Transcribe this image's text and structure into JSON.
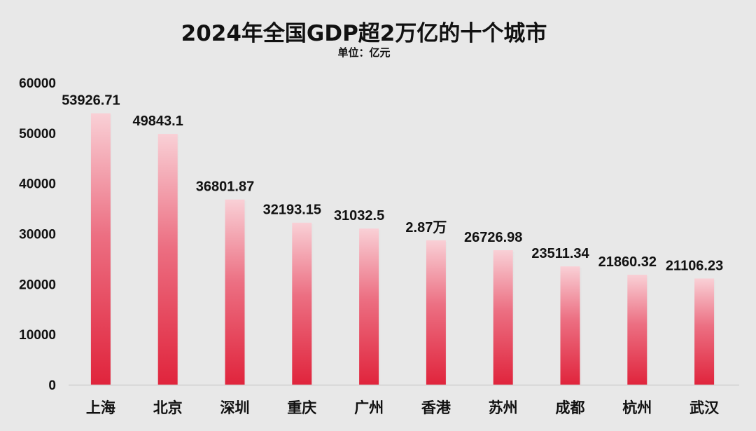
{
  "title": "2024年全国GDP超2万亿的十个城市",
  "subtitle": "单位：亿元",
  "colors": {
    "background": "#e8e8e8",
    "bar_top": "#f9d0d6",
    "bar_bottom": "#e0243c",
    "axis": "#d0d0d0"
  },
  "chart_data": {
    "type": "bar",
    "title": "2024年全国GDP超2万亿的十个城市",
    "subtitle": "单位：亿元",
    "categories": [
      "上海",
      "北京",
      "深圳",
      "重庆",
      "广州",
      "香港",
      "苏州",
      "成都",
      "杭州",
      "武汉"
    ],
    "values": [
      53926.71,
      49843.1,
      36801.87,
      32193.15,
      31032.5,
      28700,
      26726.98,
      23511.34,
      21860.32,
      21106.23
    ],
    "value_labels": [
      "53926.71",
      "49843.1",
      "36801.87",
      "32193.15",
      "31032.5",
      "2.87万",
      "26726.98",
      "23511.34",
      "21860.32",
      "21106.23"
    ],
    "yticks": [
      "0",
      "10000",
      "20000",
      "30000",
      "40000",
      "50000",
      "60000"
    ],
    "ylim": [
      0,
      60000
    ],
    "grid": false,
    "legend": "none"
  }
}
